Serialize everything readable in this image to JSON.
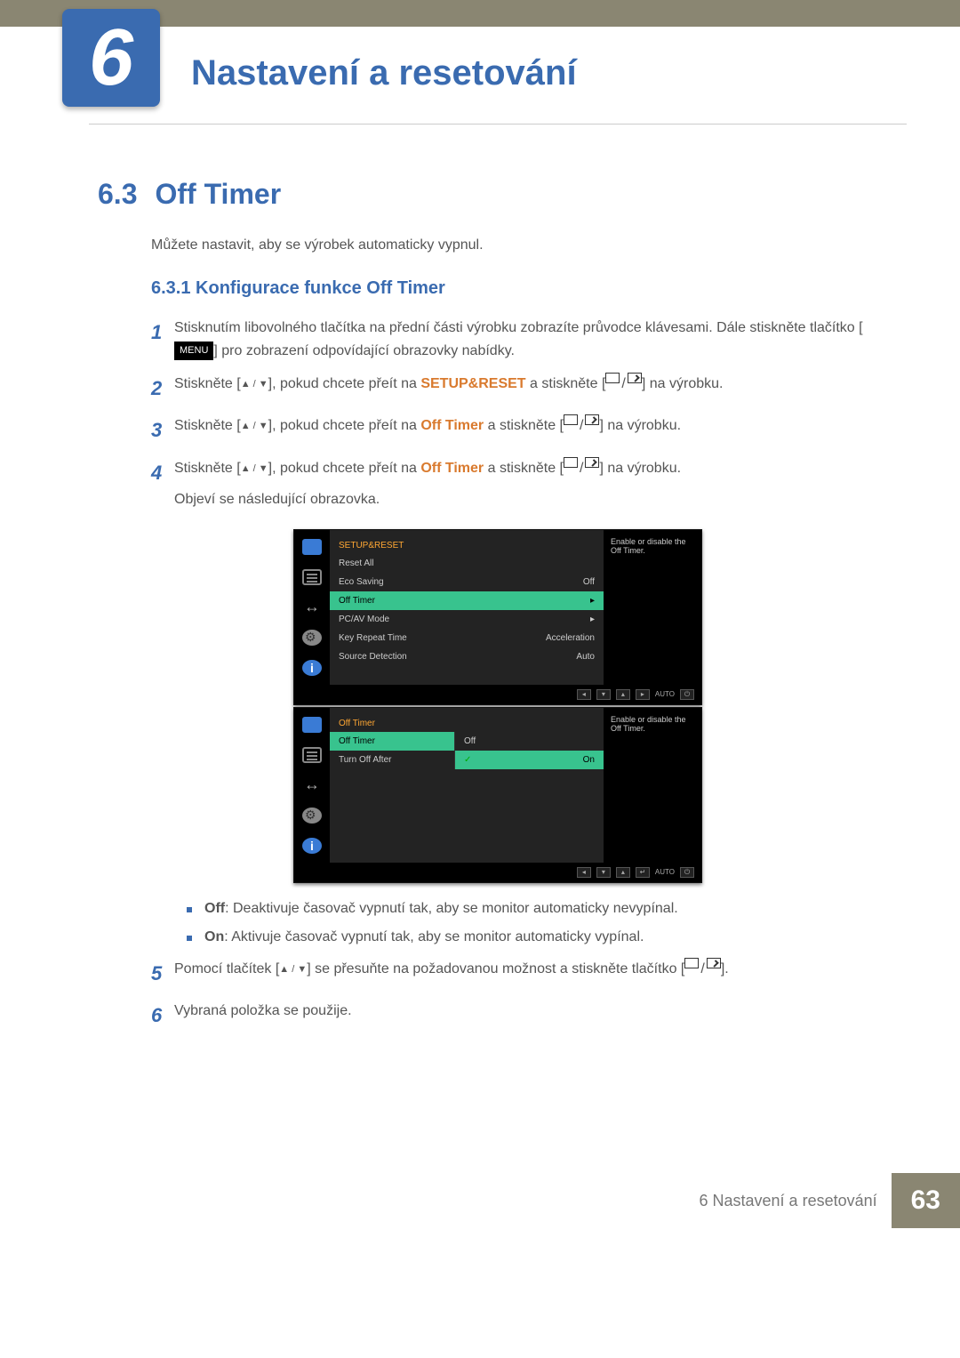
{
  "chapter": {
    "number": "6",
    "title": "Nastavení a resetování"
  },
  "section": {
    "number": "6.3",
    "title": "Off Timer"
  },
  "intro": "Můžete nastavit, aby se výrobek automaticky vypnul.",
  "subsection": "6.3.1   Konfigurace funkce Off Timer",
  "steps": {
    "s1a": "Stisknutím libovolného tlačítka na přední části výrobku zobrazíte průvodce klávesami. Dále stiskněte tlačítko [",
    "s1_btn": "MENU",
    "s1b": "] pro zobrazení odpovídající obrazovky nabídky.",
    "s2a": "Stiskněte [",
    "s2b": "], pokud chcete přeít na",
    "s2_tgt": "SETUP&RESET",
    "s2c": "a stiskněte [",
    "s2d": "] na výrobku.",
    "s3a": "Stiskněte [",
    "s3b": "], pokud chcete přeít na",
    "s3_tgt": "Off Timer",
    "s3c": "a stiskněte [",
    "s3d": "] na výrobku.",
    "s4a": "Stiskněte [",
    "s4b": "], pokud chcete přeít na",
    "s4_tgt": "Off Timer",
    "s4c": "a stiskněte [",
    "s4d": "] na výrobku.",
    "s4_after": "Objeví se následující obrazovka.",
    "s5a": "Pomocí tlačítek [",
    "s5b": "] se přesuňte na požadovanou možnost a stiskněte tlačítko [",
    "s5c": "].",
    "s6": "Vybraná položka se použije."
  },
  "bullets": {
    "off_label": "Off",
    "off_text": ": Deaktivuje časovač vypnutí tak, aby se monitor automaticky nevypínal.",
    "on_label": "On",
    "on_text": ": Aktivuje časovač vypnutí tak, aby se monitor automaticky vypínal."
  },
  "osd1": {
    "header": "SETUP&RESET",
    "rows": [
      {
        "label": "Reset All",
        "val": ""
      },
      {
        "label": "Eco Saving",
        "val": "Off"
      },
      {
        "label": "Off Timer",
        "val": "▸",
        "sel": true
      },
      {
        "label": "PC/AV Mode",
        "val": "▸"
      },
      {
        "label": "Key Repeat Time",
        "val": "Acceleration"
      },
      {
        "label": "Source Detection",
        "val": "Auto"
      }
    ],
    "hint": "Enable or disable the Off Timer.",
    "foot_auto": "AUTO"
  },
  "osd2": {
    "header": "Off Timer",
    "left": [
      {
        "label": "Off Timer",
        "sel": true
      },
      {
        "label": "Turn Off After"
      }
    ],
    "right": [
      {
        "label": "Off"
      },
      {
        "label": "On",
        "check": true,
        "sel": true
      }
    ],
    "hint": "Enable or disable the Off Timer.",
    "foot_auto": "AUTO"
  },
  "footer": {
    "text": "6 Nastavení a resetování",
    "page": "63"
  },
  "colors": {
    "brand": "#3a6bb0",
    "accent": "#d97a2e",
    "bar": "#8a8672",
    "osd_sel": "#38c38e",
    "osd_hdr": "#ffa733"
  }
}
